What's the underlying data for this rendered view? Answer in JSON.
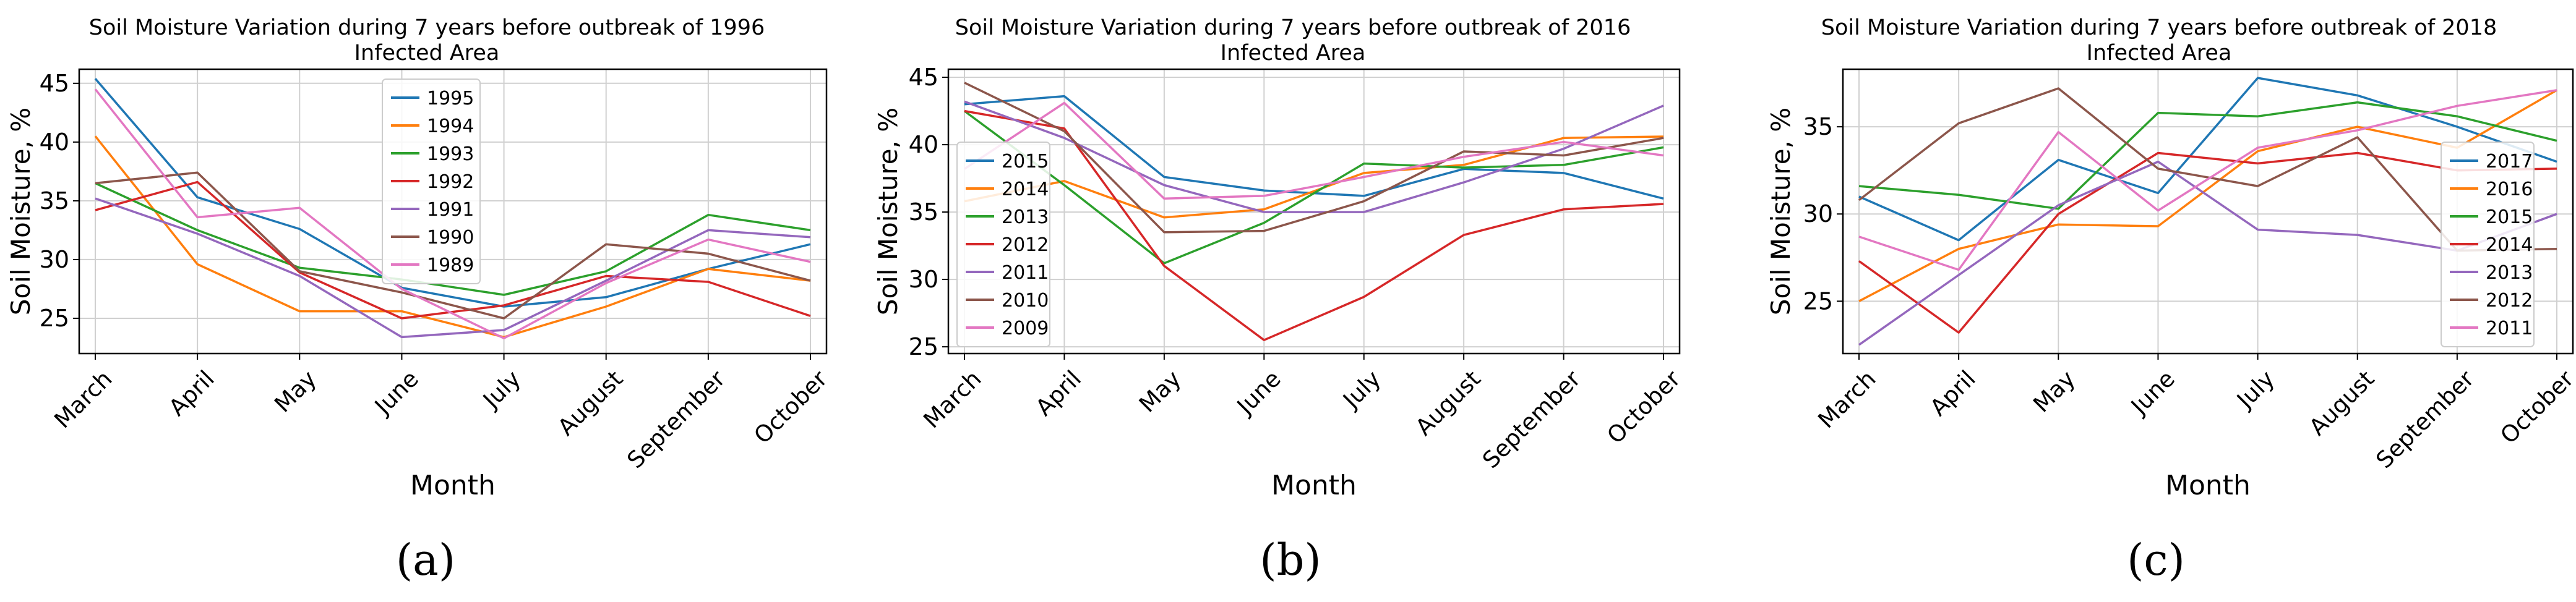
{
  "chart_data": [
    {
      "type": "line",
      "title": "Soil Moisture Variation during 7 years before outbreak of 1996",
      "subtitle": "Infected Area",
      "xlabel": "Month",
      "ylabel": "Soil Moisture, %",
      "caption": "(a)",
      "categories": [
        "March",
        "April",
        "May",
        "June",
        "July",
        "August",
        "September",
        "October"
      ],
      "ylim": [
        22,
        46.2
      ],
      "yticks": [
        25,
        30,
        35,
        40,
        45
      ],
      "grid": true,
      "legend_position": "top-center",
      "series": [
        {
          "name": "1995",
          "color": "#1f77b4",
          "values": [
            45.4,
            35.3,
            32.6,
            27.6,
            26.0,
            26.8,
            29.2,
            31.3
          ]
        },
        {
          "name": "1994",
          "color": "#ff7f0e",
          "values": [
            40.5,
            29.6,
            25.6,
            25.6,
            23.4,
            26.0,
            29.2,
            28.2
          ]
        },
        {
          "name": "1993",
          "color": "#2ca02c",
          "values": [
            36.5,
            32.5,
            29.3,
            28.3,
            27.0,
            29.0,
            33.8,
            32.5
          ]
        },
        {
          "name": "1992",
          "color": "#d62728",
          "values": [
            34.2,
            36.6,
            28.9,
            25.0,
            26.1,
            28.6,
            28.1,
            25.2
          ]
        },
        {
          "name": "1991",
          "color": "#9467bd",
          "values": [
            35.2,
            32.2,
            28.6,
            23.4,
            24.0,
            28.2,
            32.5,
            31.9
          ]
        },
        {
          "name": "1990",
          "color": "#8c564b",
          "values": [
            36.5,
            37.4,
            29.0,
            27.2,
            25.0,
            31.3,
            30.5,
            28.2
          ]
        },
        {
          "name": "1989",
          "color": "#e377c2",
          "values": [
            44.5,
            33.6,
            34.4,
            27.5,
            23.3,
            28.0,
            31.7,
            29.8
          ]
        }
      ]
    },
    {
      "type": "line",
      "title": "Soil Moisture Variation during 7 years before outbreak of 2016",
      "subtitle": "Infected Area",
      "xlabel": "Month",
      "ylabel": "Soil Moisture, %",
      "caption": "(b)",
      "categories": [
        "March",
        "April",
        "May",
        "June",
        "July",
        "August",
        "September",
        "October"
      ],
      "ylim": [
        24.5,
        45.6
      ],
      "yticks": [
        25,
        30,
        35,
        40,
        45
      ],
      "grid": true,
      "legend_position": "center-left",
      "series": [
        {
          "name": "2015",
          "color": "#1f77b4",
          "values": [
            43.0,
            43.6,
            37.6,
            36.6,
            36.2,
            38.2,
            37.9,
            36.0
          ]
        },
        {
          "name": "2014",
          "color": "#ff7f0e",
          "values": [
            35.8,
            37.3,
            34.6,
            35.2,
            37.9,
            38.5,
            40.5,
            40.6
          ]
        },
        {
          "name": "2013",
          "color": "#2ca02c",
          "values": [
            42.5,
            37.0,
            31.2,
            34.2,
            38.6,
            38.3,
            38.5,
            39.8
          ]
        },
        {
          "name": "2012",
          "color": "#d62728",
          "values": [
            42.5,
            41.2,
            31.0,
            25.5,
            28.7,
            33.3,
            35.2,
            35.6
          ]
        },
        {
          "name": "2011",
          "color": "#9467bd",
          "values": [
            43.2,
            40.5,
            37.0,
            35.0,
            35.0,
            37.2,
            39.7,
            42.9
          ]
        },
        {
          "name": "2010",
          "color": "#8c564b",
          "values": [
            44.6,
            41.0,
            33.5,
            33.6,
            35.8,
            39.5,
            39.2,
            40.5
          ]
        },
        {
          "name": "2009",
          "color": "#e377c2",
          "values": [
            38.2,
            43.1,
            36.0,
            36.2,
            37.6,
            39.1,
            40.2,
            39.2
          ]
        }
      ]
    },
    {
      "type": "line",
      "title": "Soil Moisture Variation during 7 years before outbreak of 2018",
      "subtitle": "Infected Area",
      "xlabel": "Month",
      "ylabel": "Soil Moisture, %",
      "caption": "(c)",
      "categories": [
        "March",
        "April",
        "May",
        "June",
        "July",
        "August",
        "September",
        "October"
      ],
      "ylim": [
        22,
        38.3
      ],
      "yticks": [
        25,
        30,
        35
      ],
      "grid": true,
      "legend_position": "center-right",
      "series": [
        {
          "name": "2017",
          "color": "#1f77b4",
          "values": [
            31.0,
            28.5,
            33.1,
            31.2,
            37.8,
            36.8,
            35.0,
            33.0
          ]
        },
        {
          "name": "2016",
          "color": "#ff7f0e",
          "values": [
            25.0,
            28.0,
            29.4,
            29.3,
            33.6,
            35.0,
            33.8,
            37.1
          ]
        },
        {
          "name": "2015",
          "color": "#2ca02c",
          "values": [
            31.6,
            31.1,
            30.3,
            35.8,
            35.6,
            36.4,
            35.6,
            34.2
          ]
        },
        {
          "name": "2014",
          "color": "#d62728",
          "values": [
            27.3,
            23.2,
            30.0,
            33.5,
            32.9,
            33.5,
            32.5,
            32.6
          ]
        },
        {
          "name": "2013",
          "color": "#9467bd",
          "values": [
            22.5,
            26.5,
            30.5,
            33.0,
            29.1,
            28.8,
            27.9,
            30.0
          ]
        },
        {
          "name": "2012",
          "color": "#8c564b",
          "values": [
            30.8,
            35.2,
            37.2,
            32.6,
            31.6,
            34.4,
            27.9,
            28.0
          ]
        },
        {
          "name": "2011",
          "color": "#e377c2",
          "values": [
            28.7,
            26.8,
            34.7,
            30.2,
            33.8,
            34.8,
            36.2,
            37.1
          ]
        }
      ]
    }
  ]
}
